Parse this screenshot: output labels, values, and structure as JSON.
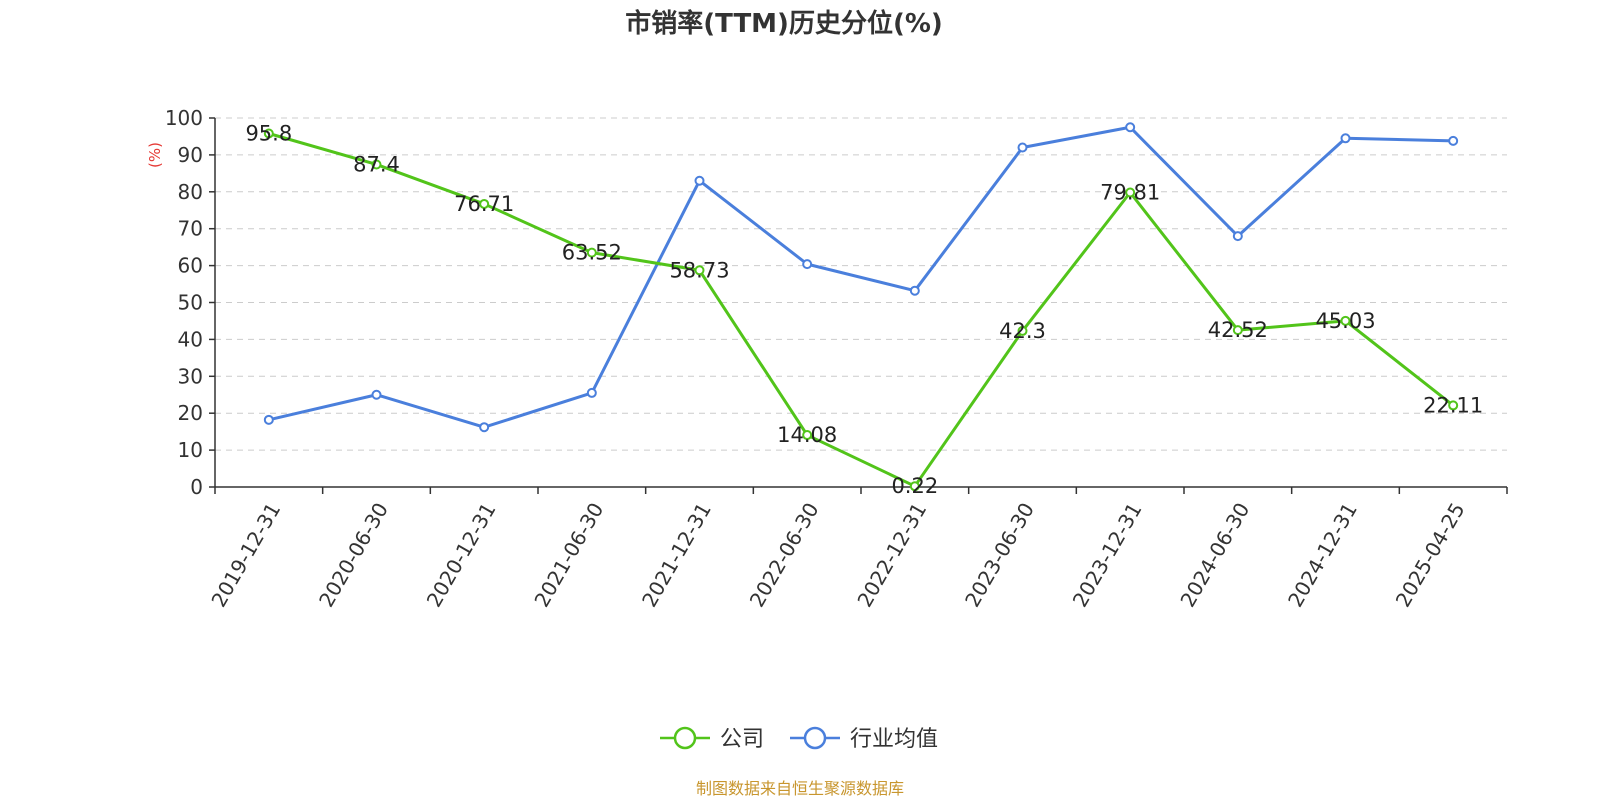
{
  "chart_data": {
    "type": "line",
    "title": "市销率(TTM)历史分位(%)",
    "ylabel": "(%)",
    "ylim": [
      0,
      100
    ],
    "yticks": [
      0,
      10,
      20,
      30,
      40,
      50,
      60,
      70,
      80,
      90,
      100
    ],
    "grid": true,
    "legend_position": "bottom-center",
    "categories": [
      "2019-12-31",
      "2020-06-30",
      "2020-12-31",
      "2021-06-30",
      "2021-12-31",
      "2022-06-30",
      "2022-12-31",
      "2023-06-30",
      "2023-12-31",
      "2024-06-30",
      "2024-12-31",
      "2025-04-25"
    ],
    "series": [
      {
        "name": "公司",
        "color": "#52c41a",
        "show_labels": true,
        "values": [
          95.8,
          87.4,
          76.71,
          63.52,
          58.73,
          14.08,
          0.22,
          42.3,
          79.81,
          42.52,
          45.03,
          22.11
        ],
        "labels": [
          "95.8",
          "87.4",
          "76.71",
          "63.52",
          "58.73",
          "14.08",
          "0.22",
          "42.3",
          "79.81",
          "42.52",
          "45.03",
          "22.11"
        ]
      },
      {
        "name": "行业均值",
        "color": "#4a7fdc",
        "show_labels": false,
        "values": [
          18.2,
          25.0,
          16.2,
          25.5,
          83.0,
          60.4,
          53.2,
          92.0,
          97.5,
          68.0,
          94.5,
          93.8
        ]
      }
    ],
    "ylabel_color": "#e53935"
  },
  "source": {
    "text": "制图数据来自恒生聚源数据库",
    "color": "#c8962e"
  }
}
